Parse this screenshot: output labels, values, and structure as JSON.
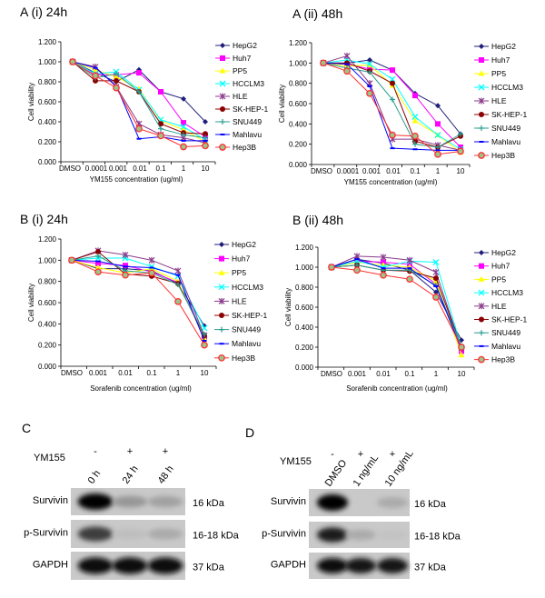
{
  "series_styles": [
    {
      "name": "HepG2",
      "color": "#1f1f7a",
      "marker": "diamond"
    },
    {
      "name": "Huh7",
      "color": "#ff00ff",
      "marker": "square"
    },
    {
      "name": "PP5",
      "color": "#ffff00",
      "marker": "triangle"
    },
    {
      "name": "HCCLM3",
      "color": "#00ffff",
      "marker": "x"
    },
    {
      "name": "HLE",
      "color": "#8b3a8b",
      "marker": "star"
    },
    {
      "name": "SK-HEP-1",
      "color": "#8b0000",
      "marker": "circle"
    },
    {
      "name": "SNU449",
      "color": "#2a9d8f",
      "marker": "plus"
    },
    {
      "name": "Mahlavu",
      "color": "#0000ff",
      "marker": "dash"
    },
    {
      "name": "Hep3B",
      "color": "#ff3030",
      "marker": "open-circle",
      "fill": "#9cc48a"
    }
  ],
  "chart_data": [
    {
      "panel": "A (i) 24h",
      "type": "line",
      "xlabel": "YM155 concentration (ug/ml)",
      "ylabel": "Cell viability",
      "categories": [
        "DMSO",
        "0.0001",
        "0.001",
        "0.01",
        "0.1",
        "1",
        "10"
      ],
      "ylim": [
        0,
        1.2
      ],
      "yticks": [
        "0.000",
        "0.200",
        "0.400",
        "0.600",
        "0.800",
        "1.000",
        "1.200"
      ],
      "grid": false,
      "legend": "right",
      "series": [
        {
          "name": "HepG2",
          "values": [
            1.0,
            0.89,
            0.8,
            0.92,
            0.7,
            0.63,
            0.4
          ]
        },
        {
          "name": "Huh7",
          "values": [
            1.0,
            0.87,
            0.87,
            0.89,
            0.7,
            0.39,
            0.25
          ]
        },
        {
          "name": "PP5",
          "values": [
            1.0,
            0.92,
            0.85,
            0.73,
            0.41,
            0.32,
            0.2
          ]
        },
        {
          "name": "HCCLM3",
          "values": [
            1.0,
            0.88,
            0.9,
            0.72,
            0.42,
            0.35,
            0.22
          ]
        },
        {
          "name": "HLE",
          "values": [
            1.0,
            0.95,
            0.75,
            0.38,
            0.27,
            0.24,
            0.19
          ]
        },
        {
          "name": "SK-HEP-1",
          "values": [
            1.0,
            0.81,
            0.81,
            0.7,
            0.38,
            0.29,
            0.28
          ]
        },
        {
          "name": "SNU449",
          "values": [
            1.0,
            0.84,
            0.88,
            0.7,
            0.33,
            0.27,
            0.24
          ]
        },
        {
          "name": "Mahlavu",
          "values": [
            1.0,
            0.94,
            0.76,
            0.23,
            0.25,
            0.21,
            0.21
          ]
        },
        {
          "name": "Hep3B",
          "values": [
            1.0,
            0.86,
            0.74,
            0.33,
            0.26,
            0.15,
            0.16
          ]
        }
      ]
    },
    {
      "panel": "A (ii) 48h",
      "type": "line",
      "xlabel": "YM155 concentration (ug/ml)",
      "ylabel": "Cell viability",
      "categories": [
        "DMSO",
        "0.0001",
        "0.001",
        "0.01",
        "0.1",
        "1",
        "10"
      ],
      "ylim": [
        0,
        1.2
      ],
      "yticks": [
        "0.000",
        "0.200",
        "0.400",
        "0.600",
        "0.800",
        "1.000",
        "1.200"
      ],
      "grid": false,
      "legend": "right",
      "series": [
        {
          "name": "HepG2",
          "values": [
            1.0,
            1.0,
            1.03,
            0.93,
            0.7,
            0.58,
            0.3
          ]
        },
        {
          "name": "Huh7",
          "values": [
            1.0,
            0.99,
            0.94,
            0.93,
            0.68,
            0.4,
            0.17
          ]
        },
        {
          "name": "PP5",
          "values": [
            1.0,
            0.97,
            0.98,
            0.78,
            0.43,
            0.29,
            0.12
          ]
        },
        {
          "name": "HCCLM3",
          "values": [
            1.0,
            1.03,
            0.99,
            0.84,
            0.47,
            0.29,
            0.15
          ]
        },
        {
          "name": "HLE",
          "values": [
            1.0,
            1.07,
            0.8,
            0.25,
            0.25,
            0.19,
            0.14
          ]
        },
        {
          "name": "SK-HEP-1",
          "values": [
            1.0,
            1.0,
            0.92,
            0.8,
            0.23,
            0.17,
            0.28
          ]
        },
        {
          "name": "SNU449",
          "values": [
            1.0,
            0.95,
            0.91,
            0.64,
            0.2,
            0.17,
            0.3
          ]
        },
        {
          "name": "Mahlavu",
          "values": [
            1.0,
            0.99,
            0.77,
            0.16,
            0.15,
            0.14,
            0.14
          ]
        },
        {
          "name": "Hep3B",
          "values": [
            1.0,
            0.92,
            0.7,
            0.29,
            0.28,
            0.1,
            0.13
          ]
        }
      ]
    },
    {
      "panel": "B (i) 24h",
      "type": "line",
      "xlabel": "Sorafenib concentration (ug/ml)",
      "ylabel": "Cell viability",
      "categories": [
        "DMSO",
        "0.001",
        "0.01",
        "0.1",
        "1",
        "10"
      ],
      "ylim": [
        0,
        1.2
      ],
      "yticks": [
        "0.000",
        "0.200",
        "0.400",
        "0.600",
        "0.800",
        "1.000",
        "1.200"
      ],
      "grid": false,
      "legend": "right",
      "series": [
        {
          "name": "HepG2",
          "values": [
            1.0,
            0.92,
            0.92,
            0.9,
            0.78,
            0.38
          ]
        },
        {
          "name": "Huh7",
          "values": [
            1.0,
            0.97,
            0.95,
            0.89,
            0.79,
            0.27
          ]
        },
        {
          "name": "PP5",
          "values": [
            1.0,
            0.93,
            0.88,
            0.92,
            0.8,
            0.26
          ]
        },
        {
          "name": "HCCLM3",
          "values": [
            1.0,
            1.02,
            1.02,
            0.94,
            0.85,
            0.36
          ]
        },
        {
          "name": "HLE",
          "values": [
            1.0,
            1.09,
            1.05,
            1.0,
            0.9,
            0.29
          ]
        },
        {
          "name": "SK-HEP-1",
          "values": [
            1.0,
            1.08,
            0.87,
            0.85,
            0.78,
            0.29
          ]
        },
        {
          "name": "SNU449",
          "values": [
            1.0,
            1.04,
            0.9,
            0.88,
            0.77,
            0.3
          ]
        },
        {
          "name": "Mahlavu",
          "values": [
            1.0,
            0.99,
            0.94,
            0.93,
            0.86,
            0.24
          ]
        },
        {
          "name": "Hep3B",
          "values": [
            1.0,
            0.89,
            0.86,
            0.88,
            0.61,
            0.2
          ]
        }
      ]
    },
    {
      "panel": "B (ii) 48h",
      "type": "line",
      "xlabel": "Sorafenib concentration (ug/ml)",
      "ylabel": "Cell viability",
      "categories": [
        "DMSO",
        "0.001",
        "0.01",
        "0.1",
        "1",
        "10"
      ],
      "ylim": [
        0,
        1.2
      ],
      "yticks": [
        "0.000",
        "0.200",
        "0.400",
        "0.600",
        "0.800",
        "1.000",
        "1.200"
      ],
      "grid": false,
      "legend": "right",
      "series": [
        {
          "name": "HepG2",
          "values": [
            1.0,
            1.08,
            1.04,
            0.97,
            0.75,
            0.27
          ]
        },
        {
          "name": "Huh7",
          "values": [
            1.0,
            1.06,
            1.05,
            1.03,
            0.83,
            0.16
          ]
        },
        {
          "name": "PP5",
          "values": [
            1.0,
            1.05,
            1.02,
            1.0,
            0.86,
            0.12
          ]
        },
        {
          "name": "HCCLM3",
          "values": [
            1.0,
            1.06,
            1.0,
            1.06,
            1.05,
            0.2
          ]
        },
        {
          "name": "HLE",
          "values": [
            1.0,
            1.11,
            1.1,
            1.07,
            0.95,
            0.19
          ]
        },
        {
          "name": "SK-HEP-1",
          "values": [
            1.0,
            1.02,
            0.97,
            0.96,
            0.89,
            0.2
          ]
        },
        {
          "name": "SNU449",
          "values": [
            1.0,
            1.02,
            0.97,
            0.97,
            0.82,
            0.21
          ]
        },
        {
          "name": "Mahlavu",
          "values": [
            1.0,
            1.08,
            0.99,
            0.99,
            0.81,
            0.18
          ]
        },
        {
          "name": "Hep3B",
          "values": [
            1.0,
            0.97,
            0.92,
            0.88,
            0.7,
            0.2
          ]
        }
      ]
    }
  ],
  "blots": [
    {
      "panel": "C",
      "treatment_label": "YM155",
      "signs": [
        "-",
        "+",
        "+"
      ],
      "lanes": [
        "0 h",
        "24 h",
        "48 h"
      ],
      "rows": [
        {
          "label": "Survivin",
          "kda": "16 kDa",
          "intensity": [
            1.0,
            0.25,
            0.2
          ]
        },
        {
          "label": "p-Survivin",
          "kda": "16-18 kDa",
          "intensity": [
            0.7,
            0.05,
            0.15
          ]
        },
        {
          "label": "GAPDH",
          "kda": "37 kDa",
          "intensity": [
            0.95,
            0.95,
            0.95
          ]
        }
      ]
    },
    {
      "panel": "D",
      "treatment_label": "YM155",
      "signs": [
        "-",
        "+",
        "+"
      ],
      "lanes": [
        "DMSO",
        "1 ng/mL",
        "10 ng/mL"
      ],
      "rows": [
        {
          "label": "Survivin",
          "kda": "16 kDa",
          "intensity": [
            1.0,
            0.0,
            0.15
          ]
        },
        {
          "label": "p-Survivin",
          "kda": "16-18 kDa",
          "intensity": [
            0.85,
            0.15,
            0.03
          ]
        },
        {
          "label": "GAPDH",
          "kda": "37 kDa",
          "intensity": [
            0.95,
            0.9,
            0.9
          ]
        }
      ]
    }
  ]
}
